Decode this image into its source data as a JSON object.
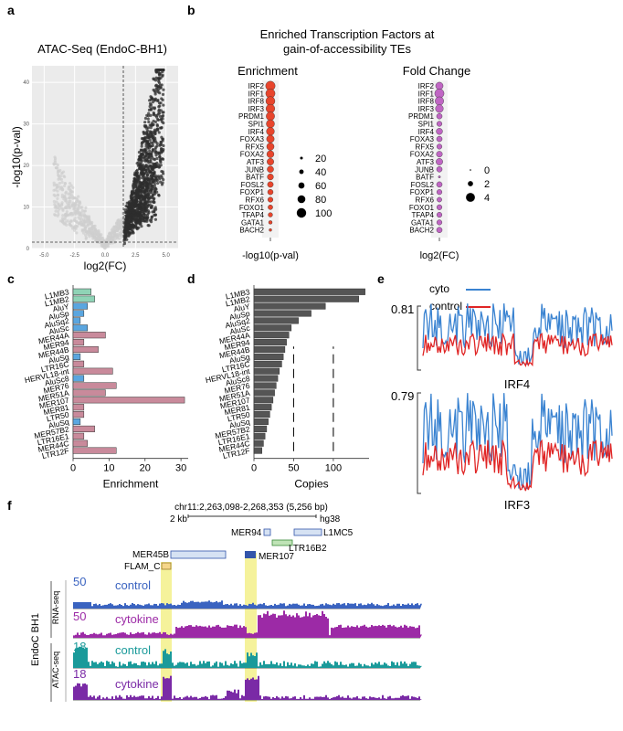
{
  "panel_labels": {
    "a": "a",
    "b": "b",
    "c": "c",
    "d": "d",
    "e": "e",
    "f": "f"
  },
  "panel_a": {
    "title": "ATAC-Seq (EndoC-BH1)",
    "xlabel": "log2(FC)",
    "ylabel": "-log10(p-val)",
    "x_ticks": [
      "-5.0",
      "-2.5",
      "0.0",
      "2.5",
      "5.0"
    ],
    "y_ticks": [
      "0",
      "10",
      "20",
      "30",
      "40"
    ],
    "colors": {
      "significant": "#2e2e2e",
      "nonsignificant": "#cfcfcf"
    }
  },
  "panel_b": {
    "title_line1": "Enriched Transcription Factors at",
    "title_line2": "gain-of-accessibility TEs",
    "factors": [
      "IRF2",
      "IRF1",
      "IRF8",
      "IRF3",
      "PRDM1",
      "SPI1",
      "IRF4",
      "FOXA3",
      "RFX5",
      "FOXA2",
      "ATF3",
      "JUNB",
      "BATF",
      "FOSL2",
      "FOXP1",
      "RFX6",
      "FOXO1",
      "TFAP4",
      "GATA1",
      "BACH2"
    ],
    "enrichment": {
      "title": "Enrichment",
      "xlabel": "-log10(p-val)",
      "values": [
        100,
        98,
        95,
        92,
        88,
        85,
        82,
        78,
        75,
        72,
        68,
        64,
        60,
        56,
        52,
        48,
        44,
        40,
        30,
        20
      ],
      "legend_values": [
        "20",
        "40",
        "60",
        "80",
        "100"
      ],
      "color": "#e8452c"
    },
    "fold_change": {
      "title": "Fold Change",
      "xlabel": "log2(FC)",
      "values": [
        3.2,
        4.2,
        3.8,
        3.4,
        2.2,
        2.0,
        2.6,
        2.2,
        2.0,
        2.4,
        2.8,
        2.2,
        0.4,
        2.2,
        2.0,
        1.8,
        2.0,
        2.0,
        2.0,
        2.2
      ],
      "legend_values": [
        "0",
        "2",
        "4"
      ],
      "color": "#c066c4"
    }
  },
  "chart_data": [
    {
      "type": "bar",
      "panel": "c",
      "orientation": "horizontal",
      "title": "",
      "xlabel": "Enrichment",
      "ylabel": "",
      "xlim": [
        0,
        32
      ],
      "x_ticks": [
        "0",
        "10",
        "20",
        "30"
      ],
      "categories": [
        "L1MB3",
        "L1MB2",
        "AluY",
        "AluSp",
        "AluSq2",
        "AluSc",
        "MER44A",
        "MER94",
        "MER44B",
        "AluSg",
        "LTR16C",
        "HERVL18-int",
        "AluSc8",
        "MER76",
        "MER51A",
        "MER107",
        "MER81",
        "LTR50",
        "AluSq",
        "MER57B2",
        "LTR16E1",
        "MER44C",
        "LTR12F"
      ],
      "values": [
        5,
        6,
        4,
        3,
        2,
        4,
        9,
        3,
        7,
        2,
        3,
        11,
        3,
        12,
        9,
        31,
        3,
        3,
        2,
        6,
        3,
        4,
        12
      ],
      "families": [
        "L1",
        "L1",
        "Alu",
        "Alu",
        "Alu",
        "Alu",
        "DNA",
        "DNA",
        "DNA",
        "Alu",
        "LTR",
        "LTR",
        "Alu",
        "DNA",
        "DNA",
        "DNA",
        "DNA",
        "LTR",
        "Alu",
        "DNA",
        "LTR",
        "DNA",
        "LTR"
      ],
      "family_colors": {
        "L1": "#8fd3b6",
        "Alu": "#5aa6e0",
        "DNA": "#c98a9b",
        "LTR": "#c98a9b"
      }
    },
    {
      "type": "bar",
      "panel": "d",
      "orientation": "horizontal",
      "title": "",
      "xlabel": "Copies",
      "ylabel": "",
      "xlim": [
        0,
        145
      ],
      "x_ticks": [
        "0",
        "50",
        "100"
      ],
      "dashed_lines": [
        50,
        100
      ],
      "categories": [
        "L1MB3",
        "L1MB2",
        "AluY",
        "AluSp",
        "AluSq2",
        "AluSc",
        "MER44A",
        "MER94",
        "MER44B",
        "AluSg",
        "LTR16C",
        "HERVL18-int",
        "AluSc8",
        "MER76",
        "MER51A",
        "MER107",
        "MER81",
        "LTR50",
        "AluSq",
        "MER57B2",
        "LTR16E1",
        "MER44C",
        "LTR12F"
      ],
      "values": [
        140,
        132,
        90,
        72,
        56,
        47,
        44,
        41,
        39,
        37,
        35,
        32,
        30,
        28,
        26,
        24,
        22,
        20,
        18,
        16,
        14,
        12,
        10
      ],
      "color": "#555555"
    }
  ],
  "panel_e": {
    "legend": [
      {
        "label": "cyto",
        "color": "#3a83d1"
      },
      {
        "label": "control",
        "color": "#e02525"
      }
    ],
    "tracks": [
      {
        "label": "IRF4",
        "max": "0.81"
      },
      {
        "label": "IRF3",
        "max": "0.79"
      }
    ]
  },
  "panel_f": {
    "coords": "chr11:2,263,098-2,268,353 (5,256 bp)",
    "scale": "2 kb",
    "genome": "hg38",
    "elements": [
      "MER94",
      "L1MC5",
      "LTR16B2",
      "MER45B",
      "MER107",
      "FLAM_C"
    ],
    "side_label": "EndoC BH1",
    "group_labels": [
      "RNA-seq",
      "ATAC-seq"
    ],
    "tracks": [
      {
        "label": "control",
        "scale": "50",
        "color": "#3a63c0"
      },
      {
        "label": "cytokine",
        "scale": "50",
        "color": "#9c2aa6"
      },
      {
        "label": "control",
        "scale": "18",
        "color": "#1a9a9a"
      },
      {
        "label": "cytokine",
        "scale": "18",
        "color": "#7a2aa6"
      }
    ]
  }
}
